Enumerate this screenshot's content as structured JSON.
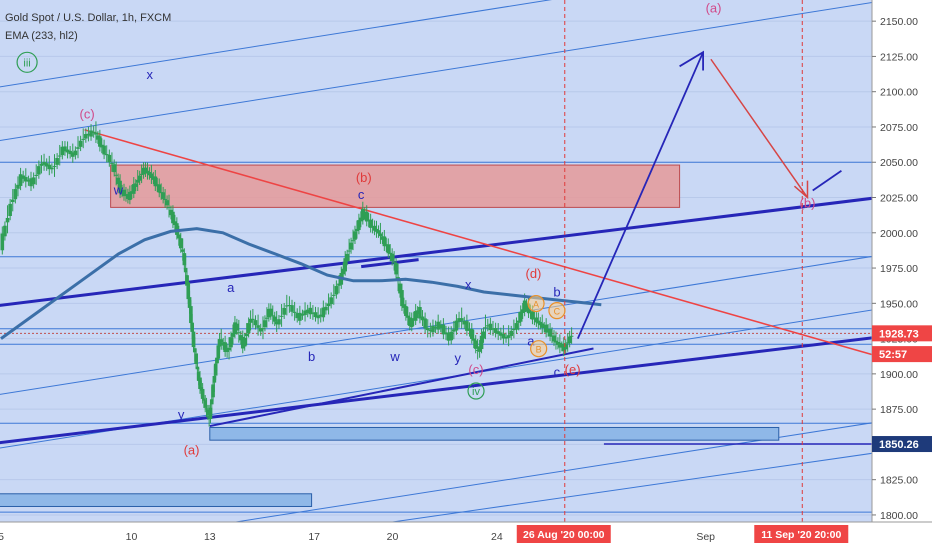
{
  "header": {
    "title": "Gold Spot / U.S. Dollar, 1h, FXCM",
    "indicator": "EMA (233, hl2)"
  },
  "colors": {
    "background": "#c9d8f5",
    "axis_bg": "#ffffff",
    "candle": "#2f9e55",
    "ema": "#3b6fa8",
    "wave_blue": "#2626b8",
    "wave_red": "#e03a3a",
    "trend_red": "#ee4444",
    "zone_red": "#e69a9a",
    "zone_blue": "#8fb8e8",
    "thin_blue": "#3d78d6",
    "price_tag": "#ef4545",
    "price_tag2": "#1e3a7a"
  },
  "chart_data": {
    "type": "line",
    "title": "Gold Spot / U.S. Dollar, 1h, FXCM",
    "ylim": [
      1795,
      2165
    ],
    "y_ticks": [
      1800,
      1825,
      1850,
      1875,
      1900,
      1925,
      1950,
      1975,
      2000,
      2025,
      2050,
      2075,
      2100,
      2125,
      2150
    ],
    "x_ticks": [
      {
        "label": "5",
        "day": 5
      },
      {
        "label": "10",
        "day": 10
      },
      {
        "label": "13",
        "day": 13
      },
      {
        "label": "17",
        "day": 17
      },
      {
        "label": "20",
        "day": 20
      },
      {
        "label": "24",
        "day": 24
      },
      {
        "label": "Sep",
        "day": 32
      }
    ],
    "x_markers": [
      {
        "label": "26 Aug '20",
        "time": "00:00",
        "day": 26.6
      },
      {
        "label": "11 Sep '20",
        "time": "20:00",
        "day": 35.7
      }
    ],
    "price_labels": [
      {
        "text": "1928.73",
        "value": 1928.73,
        "kind": "last"
      },
      {
        "text": "52:57",
        "value": 1914,
        "kind": "timer"
      },
      {
        "text": "1850.26",
        "value": 1850.26,
        "kind": "level"
      }
    ],
    "series": [
      {
        "name": "Price",
        "points": [
          [
            5.0,
            1990
          ],
          [
            5.4,
            2020
          ],
          [
            5.8,
            2040
          ],
          [
            6.2,
            2035
          ],
          [
            6.6,
            2050
          ],
          [
            7.0,
            2045
          ],
          [
            7.4,
            2060
          ],
          [
            7.8,
            2055
          ],
          [
            8.2,
            2068
          ],
          [
            8.6,
            2072
          ],
          [
            8.9,
            2060
          ],
          [
            9.3,
            2048
          ],
          [
            9.6,
            2030
          ],
          [
            9.9,
            2025
          ],
          [
            10.2,
            2035
          ],
          [
            10.5,
            2045
          ],
          [
            10.8,
            2040
          ],
          [
            11.1,
            2030
          ],
          [
            11.4,
            2020
          ],
          [
            11.7,
            2005
          ],
          [
            12.0,
            1985
          ],
          [
            12.2,
            1955
          ],
          [
            12.4,
            1920
          ],
          [
            12.6,
            1895
          ],
          [
            12.8,
            1880
          ],
          [
            13.0,
            1868
          ],
          [
            13.2,
            1900
          ],
          [
            13.4,
            1925
          ],
          [
            13.7,
            1915
          ],
          [
            14.0,
            1935
          ],
          [
            14.3,
            1920
          ],
          [
            14.6,
            1940
          ],
          [
            15.0,
            1930
          ],
          [
            15.3,
            1945
          ],
          [
            15.6,
            1935
          ],
          [
            16.0,
            1950
          ],
          [
            16.4,
            1940
          ],
          [
            16.8,
            1945
          ],
          [
            17.2,
            1940
          ],
          [
            17.6,
            1950
          ],
          [
            18.0,
            1965
          ],
          [
            18.3,
            1985
          ],
          [
            18.6,
            2000
          ],
          [
            18.9,
            2015
          ],
          [
            19.2,
            2005
          ],
          [
            19.5,
            2000
          ],
          [
            19.8,
            1990
          ],
          [
            20.1,
            1978
          ],
          [
            20.4,
            1950
          ],
          [
            20.7,
            1935
          ],
          [
            21.0,
            1945
          ],
          [
            21.4,
            1930
          ],
          [
            21.8,
            1935
          ],
          [
            22.2,
            1925
          ],
          [
            22.6,
            1940
          ],
          [
            23.0,
            1930
          ],
          [
            23.3,
            1915
          ],
          [
            23.6,
            1935
          ],
          [
            24.0,
            1930
          ],
          [
            24.4,
            1925
          ],
          [
            24.8,
            1935
          ],
          [
            25.1,
            1950
          ],
          [
            25.4,
            1940
          ],
          [
            25.7,
            1935
          ],
          [
            26.0,
            1930
          ],
          [
            26.3,
            1922
          ],
          [
            26.6,
            1918
          ],
          [
            26.9,
            1928
          ]
        ]
      },
      {
        "name": "EMA (233, hl2)",
        "points": [
          [
            5.0,
            1925
          ],
          [
            6.5,
            1945
          ],
          [
            8.0,
            1965
          ],
          [
            9.5,
            1985
          ],
          [
            10.5,
            1995
          ],
          [
            11.5,
            2001
          ],
          [
            12.5,
            2003
          ],
          [
            13.5,
            2000
          ],
          [
            14.5,
            1992
          ],
          [
            15.5,
            1985
          ],
          [
            16.5,
            1978
          ],
          [
            17.5,
            1970
          ],
          [
            18.5,
            1966
          ],
          [
            19.5,
            1966
          ],
          [
            20.5,
            1967
          ],
          [
            21.5,
            1965
          ],
          [
            22.5,
            1962
          ],
          [
            23.5,
            1958
          ],
          [
            24.5,
            1956
          ],
          [
            25.5,
            1954
          ],
          [
            26.5,
            1952
          ],
          [
            27.5,
            1950
          ],
          [
            28.0,
            1949
          ]
        ]
      }
    ]
  },
  "annotations": [
    {
      "text": "iii",
      "day": 6.0,
      "price": 2118,
      "color": "#2f9e55",
      "circled": true
    },
    {
      "text": "(c)",
      "day": 8.3,
      "price": 2081,
      "color": "#d14a8a"
    },
    {
      "text": "x",
      "day": 10.7,
      "price": 2109,
      "color": "#2626b8"
    },
    {
      "text": "w",
      "day": 9.5,
      "price": 2027,
      "color": "#2626b8"
    },
    {
      "text": "(b)",
      "day": 18.9,
      "price": 2036,
      "color": "#e03a3a"
    },
    {
      "text": "c",
      "day": 18.8,
      "price": 2024,
      "color": "#2626b8"
    },
    {
      "text": "a",
      "day": 13.8,
      "price": 1958,
      "color": "#2626b8"
    },
    {
      "text": "b",
      "day": 16.9,
      "price": 1909,
      "color": "#2626b8"
    },
    {
      "text": "w",
      "day": 20.1,
      "price": 1909,
      "color": "#2626b8"
    },
    {
      "text": "x",
      "day": 22.9,
      "price": 1960,
      "color": "#2626b8"
    },
    {
      "text": "(d)",
      "day": 25.4,
      "price": 1968,
      "color": "#e03a3a"
    },
    {
      "text": "A",
      "day": 25.5,
      "price": 1947,
      "color": "#e8902a",
      "circled": true
    },
    {
      "text": "b",
      "day": 26.3,
      "price": 1955,
      "color": "#2626b8"
    },
    {
      "text": "C",
      "day": 26.3,
      "price": 1942,
      "color": "#e8902a",
      "circled": true
    },
    {
      "text": "a",
      "day": 25.3,
      "price": 1920,
      "color": "#2626b8"
    },
    {
      "text": "B",
      "day": 25.6,
      "price": 1915,
      "color": "#e8902a",
      "circled": true
    },
    {
      "text": "y",
      "day": 22.5,
      "price": 1908,
      "color": "#2626b8"
    },
    {
      "text": "(c)",
      "day": 23.2,
      "price": 1900,
      "color": "#d14a8a"
    },
    {
      "text": "(e)",
      "day": 26.9,
      "price": 1900,
      "color": "#e03a3a"
    },
    {
      "text": "c",
      "day": 26.3,
      "price": 1898,
      "color": "#2626b8"
    },
    {
      "text": "iv",
      "day": 23.2,
      "price": 1885,
      "color": "#2f9e55",
      "circled": true
    },
    {
      "text": "y",
      "day": 11.9,
      "price": 1868,
      "color": "#2626b8"
    },
    {
      "text": "(a)",
      "day": 12.3,
      "price": 1843,
      "color": "#e03a3a"
    },
    {
      "text": "(a)",
      "day": 32.3,
      "price": 2156,
      "color": "#d14a8a"
    },
    {
      "text": "(b)",
      "day": 35.9,
      "price": 2018,
      "color": "#d14a8a"
    }
  ]
}
